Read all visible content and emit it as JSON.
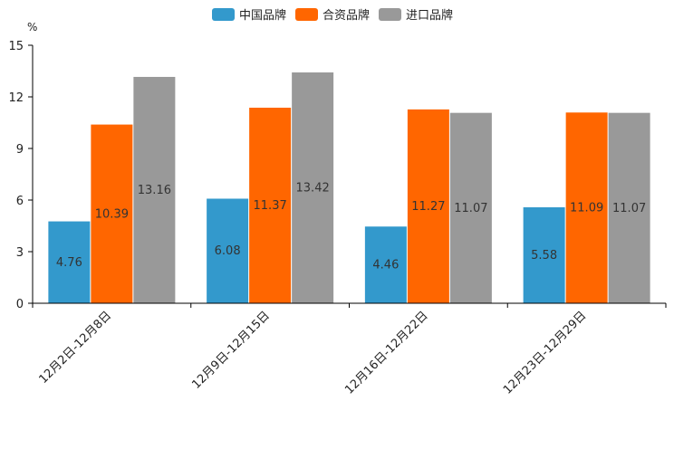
{
  "chart_data": {
    "type": "bar",
    "unit": "%",
    "categories": [
      "12月2日-12月8日",
      "12月9日-12月15日",
      "12月16日-12月22日",
      "12月23日-12月29日"
    ],
    "series": [
      {
        "name": "中国品牌",
        "color": "#3399CC",
        "values": [
          4.76,
          6.08,
          4.46,
          5.58
        ]
      },
      {
        "name": "合资品牌",
        "color": "#FF6600",
        "values": [
          10.39,
          11.37,
          11.27,
          11.09
        ]
      },
      {
        "name": "进口品牌",
        "color": "#999999",
        "values": [
          13.16,
          13.42,
          11.07,
          11.07
        ]
      }
    ],
    "ylim": [
      0,
      15
    ],
    "yticks": [
      0,
      3,
      6,
      9,
      12,
      15
    ],
    "legend_position": "top-center",
    "grid": false,
    "title": "",
    "xlabel": "",
    "ylabel": "%"
  }
}
